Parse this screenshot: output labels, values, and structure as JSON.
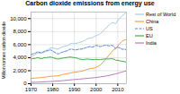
{
  "chart_data": {
    "type": "line",
    "title": "Carbon dioxide emissions from energy use",
    "ylabel": "Million tonnes carbon dioxide",
    "x": [
      1970,
      1971,
      1972,
      1973,
      1974,
      1975,
      1976,
      1977,
      1978,
      1979,
      1980,
      1981,
      1982,
      1983,
      1984,
      1985,
      1986,
      1987,
      1988,
      1989,
      1990,
      1991,
      1992,
      1993,
      1994,
      1995,
      1996,
      1997,
      1998,
      1999,
      2000,
      2001,
      2002,
      2003,
      2004,
      2005,
      2006,
      2007,
      2008,
      2009,
      2010,
      2011,
      2012,
      2013,
      2014
    ],
    "series": [
      {
        "name": "Rest of World",
        "color": "#aacce8",
        "line_style": "solid",
        "values": [
          4200,
          4300,
          4500,
          4700,
          4700,
          4800,
          5000,
          5100,
          5300,
          5500,
          5500,
          5400,
          5300,
          5400,
          5600,
          5700,
          5800,
          5900,
          6100,
          6200,
          6200,
          6200,
          6300,
          6400,
          6500,
          6700,
          6900,
          7000,
          7000,
          7200,
          7400,
          7500,
          7700,
          8000,
          8400,
          8700,
          9000,
          9300,
          9400,
          9200,
          9700,
          10100,
          10400,
          10700,
          10900
        ]
      },
      {
        "name": "China",
        "color": "#f0a040",
        "line_style": "solid",
        "values": [
          800,
          830,
          870,
          900,
          910,
          950,
          1000,
          1050,
          1100,
          1150,
          1150,
          1170,
          1200,
          1250,
          1350,
          1450,
          1500,
          1550,
          1650,
          1700,
          1750,
          1800,
          1850,
          1900,
          2000,
          2100,
          2200,
          2300,
          2350,
          2400,
          2500,
          2700,
          2900,
          3200,
          3600,
          4000,
          4400,
          4800,
          5200,
          5400,
          5800,
          6200,
          6500,
          6700,
          6800
        ]
      },
      {
        "name": "US",
        "color": "#5588cc",
        "line_style": "dashed",
        "values": [
          4500,
          4600,
          4700,
          4900,
          4800,
          4700,
          4900,
          5000,
          5100,
          5200,
          5000,
          4800,
          4600,
          4600,
          4800,
          4900,
          5000,
          5100,
          5300,
          5300,
          5200,
          5200,
          5300,
          5300,
          5400,
          5500,
          5600,
          5700,
          5600,
          5700,
          5900,
          5800,
          5700,
          5800,
          5900,
          5900,
          5800,
          5900,
          5800,
          5400,
          5600,
          5500,
          5300,
          5300,
          5200
        ]
      },
      {
        "name": "EU",
        "color": "#44aa44",
        "line_style": "solid",
        "values": [
          3800,
          3850,
          3900,
          4000,
          3900,
          3850,
          4000,
          4000,
          4050,
          4100,
          4000,
          3900,
          3800,
          3800,
          3900,
          3950,
          4000,
          4050,
          4100,
          4050,
          4000,
          3950,
          3800,
          3750,
          3700,
          3750,
          3800,
          3750,
          3700,
          3700,
          3750,
          3700,
          3700,
          3750,
          3800,
          3800,
          3800,
          3850,
          3800,
          3600,
          3600,
          3500,
          3450,
          3400,
          3300
        ]
      },
      {
        "name": "India",
        "color": "#bb77bb",
        "line_style": "solid",
        "values": [
          200,
          210,
          220,
          240,
          250,
          260,
          280,
          300,
          320,
          340,
          360,
          380,
          400,
          420,
          450,
          480,
          510,
          540,
          580,
          610,
          640,
          670,
          700,
          730,
          760,
          790,
          820,
          850,
          880,
          910,
          950,
          1000,
          1050,
          1100,
          1150,
          1200,
          1280,
          1350,
          1430,
          1500,
          1600,
          1700,
          1800,
          1900,
          1950
        ]
      }
    ],
    "xlim": [
      1970,
      2014
    ],
    "xticks": [
      1970,
      1980,
      1990,
      2000,
      2010
    ],
    "ylim": [
      0,
      11000
    ],
    "yticks": [
      0,
      {
        "value": 2000,
        "label": "2,000"
      },
      {
        "value": 4000,
        "label": "4,000"
      },
      {
        "value": 6000,
        "label": "6,000"
      },
      {
        "value": 8000,
        "label": "8,000"
      },
      {
        "value": 10000,
        "label": "10,000"
      }
    ],
    "grid": true,
    "legend": "right"
  }
}
